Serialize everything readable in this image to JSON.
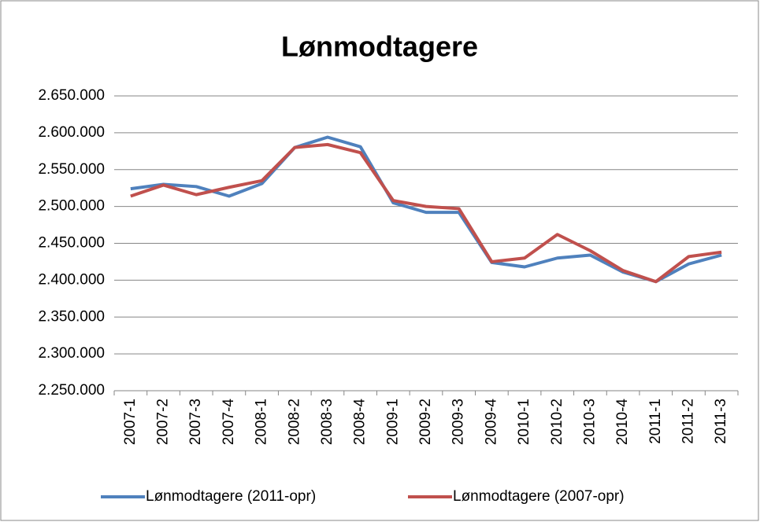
{
  "chart_data": {
    "type": "line",
    "title": "Lønmodtagere",
    "categories": [
      "2007-1",
      "2007-2",
      "2007-3",
      "2007-4",
      "2008-1",
      "2008-2",
      "2008-3",
      "2008-4",
      "2009-1",
      "2009-2",
      "2009-3",
      "2009-4",
      "2010-1",
      "2010-2",
      "2010-3",
      "2010-4",
      "2011-1",
      "2011-2",
      "2011-3"
    ],
    "series": [
      {
        "name": "Lønmodtagere (2011-opr)",
        "color": "#4f81bd",
        "values": [
          2524000,
          2530000,
          2527000,
          2514000,
          2531000,
          2580000,
          2594000,
          2581000,
          2505000,
          2492000,
          2492000,
          2424000,
          2418000,
          2430000,
          2434000,
          2411000,
          2398000,
          2422000,
          2434000
        ]
      },
      {
        "name": "Lønmodtagere (2007-opr)",
        "color": "#c0504d",
        "values": [
          2514000,
          2529000,
          2516000,
          2526000,
          2535000,
          2580000,
          2584000,
          2573000,
          2508000,
          2500000,
          2497000,
          2425000,
          2430000,
          2462000,
          2440000,
          2413000,
          2398000,
          2432000,
          2438000
        ]
      }
    ],
    "ylim": [
      2250000,
      2650000
    ],
    "yticks": [
      {
        "value": 2250000,
        "label": "2.250.000"
      },
      {
        "value": 2300000,
        "label": "2.300.000"
      },
      {
        "value": 2350000,
        "label": "2.350.000"
      },
      {
        "value": 2400000,
        "label": "2.400.000"
      },
      {
        "value": 2450000,
        "label": "2.450.000"
      },
      {
        "value": 2500000,
        "label": "2.500.000"
      },
      {
        "value": 2550000,
        "label": "2.550.000"
      },
      {
        "value": 2600000,
        "label": "2.600.000"
      },
      {
        "value": 2650000,
        "label": "2.650.000"
      }
    ],
    "grid": true,
    "legend": "bottom"
  }
}
